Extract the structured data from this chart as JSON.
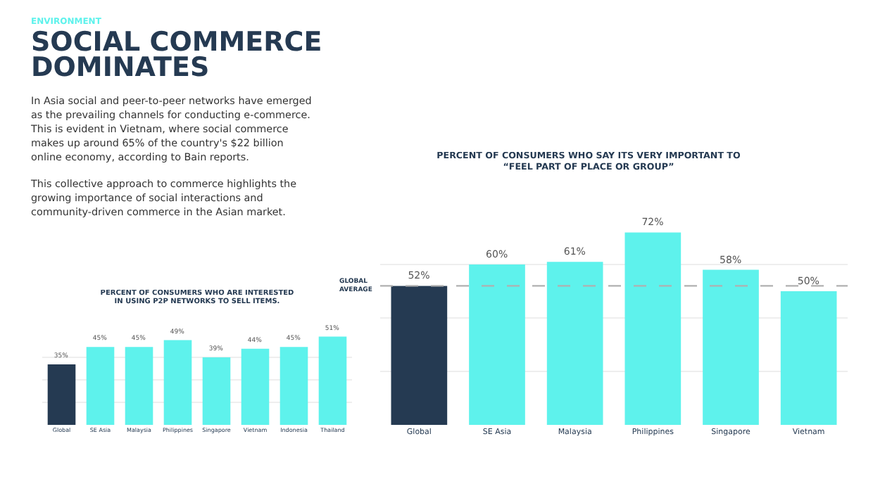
{
  "chart_data": [
    {
      "type": "other",
      "subtitle": "ENVIRONMENT",
      "title": "SOCIAL COMMERCE\nDOMINATES",
      "annotations": [
        "In Asia social and peer-to-peer networks have emerged as the prevailing channels for conducting e-commerce. This is evident in Vietnam, where social commerce makes up around 65% of the country's $22 billion online economy, according to Bain reports.",
        "This collective approach to commerce highlights the growing importance of social interactions and community-driven commerce in the Asian market."
      ]
    },
    {
      "type": "bar",
      "title": "PERCENT OF CONSUMERS WHO ARE INTERESTED\nIN USING P2P NETWORKS TO SELL ITEMS.",
      "categories": [
        "Global",
        "SE Asia",
        "Malaysia",
        "Philippines",
        "Singapore",
        "Vietnam",
        "Indonesia",
        "Thailand"
      ],
      "values": [
        35,
        45,
        45,
        49,
        39,
        44,
        45,
        51
      ],
      "colors": [
        "#253a52",
        "#5ef2ec",
        "#5ef2ec",
        "#5ef2ec",
        "#5ef2ec",
        "#5ef2ec",
        "#5ef2ec",
        "#5ef2ec"
      ],
      "value_labels": [
        "35%",
        "45%",
        "45%",
        "49%",
        "39%",
        "44%",
        "45%",
        "51%"
      ],
      "yticks": [
        {
          "value": 13,
          "label": null
        },
        {
          "value": 26,
          "label": null
        },
        {
          "value": 39,
          "label": null
        }
      ],
      "grid": "y",
      "tick_labels": "x"
    },
    {
      "type": "bar",
      "title": "PERCENT OF CONSUMERS WHO SAY ITS VERY IMPORTANT TO\n“FEEL PART OF PLACE OR GROUP”",
      "categories": [
        "Global",
        "SE Asia",
        "Malaysia",
        "Philippines",
        "Singapore",
        "Vietnam"
      ],
      "values": [
        52,
        60,
        61,
        72,
        58,
        50
      ],
      "colors": [
        "#253a52",
        "#5ef2ec",
        "#5ef2ec",
        "#5ef2ec",
        "#5ef2ec",
        "#5ef2ec"
      ],
      "value_labels": [
        "52%",
        "60%",
        "61%",
        "72%",
        "58%",
        "50%"
      ],
      "yticks": [
        {
          "value": 20,
          "label": null
        },
        {
          "value": 40,
          "label": null
        },
        {
          "value": 60,
          "label": null
        }
      ],
      "grid": "y",
      "tick_labels": "x",
      "ref_lines": [
        {
          "axis": "y",
          "value": 52,
          "label": "GLOBAL\nAVERAGE",
          "color": "#b0b0b0",
          "line_style": "dashed"
        }
      ]
    }
  ]
}
